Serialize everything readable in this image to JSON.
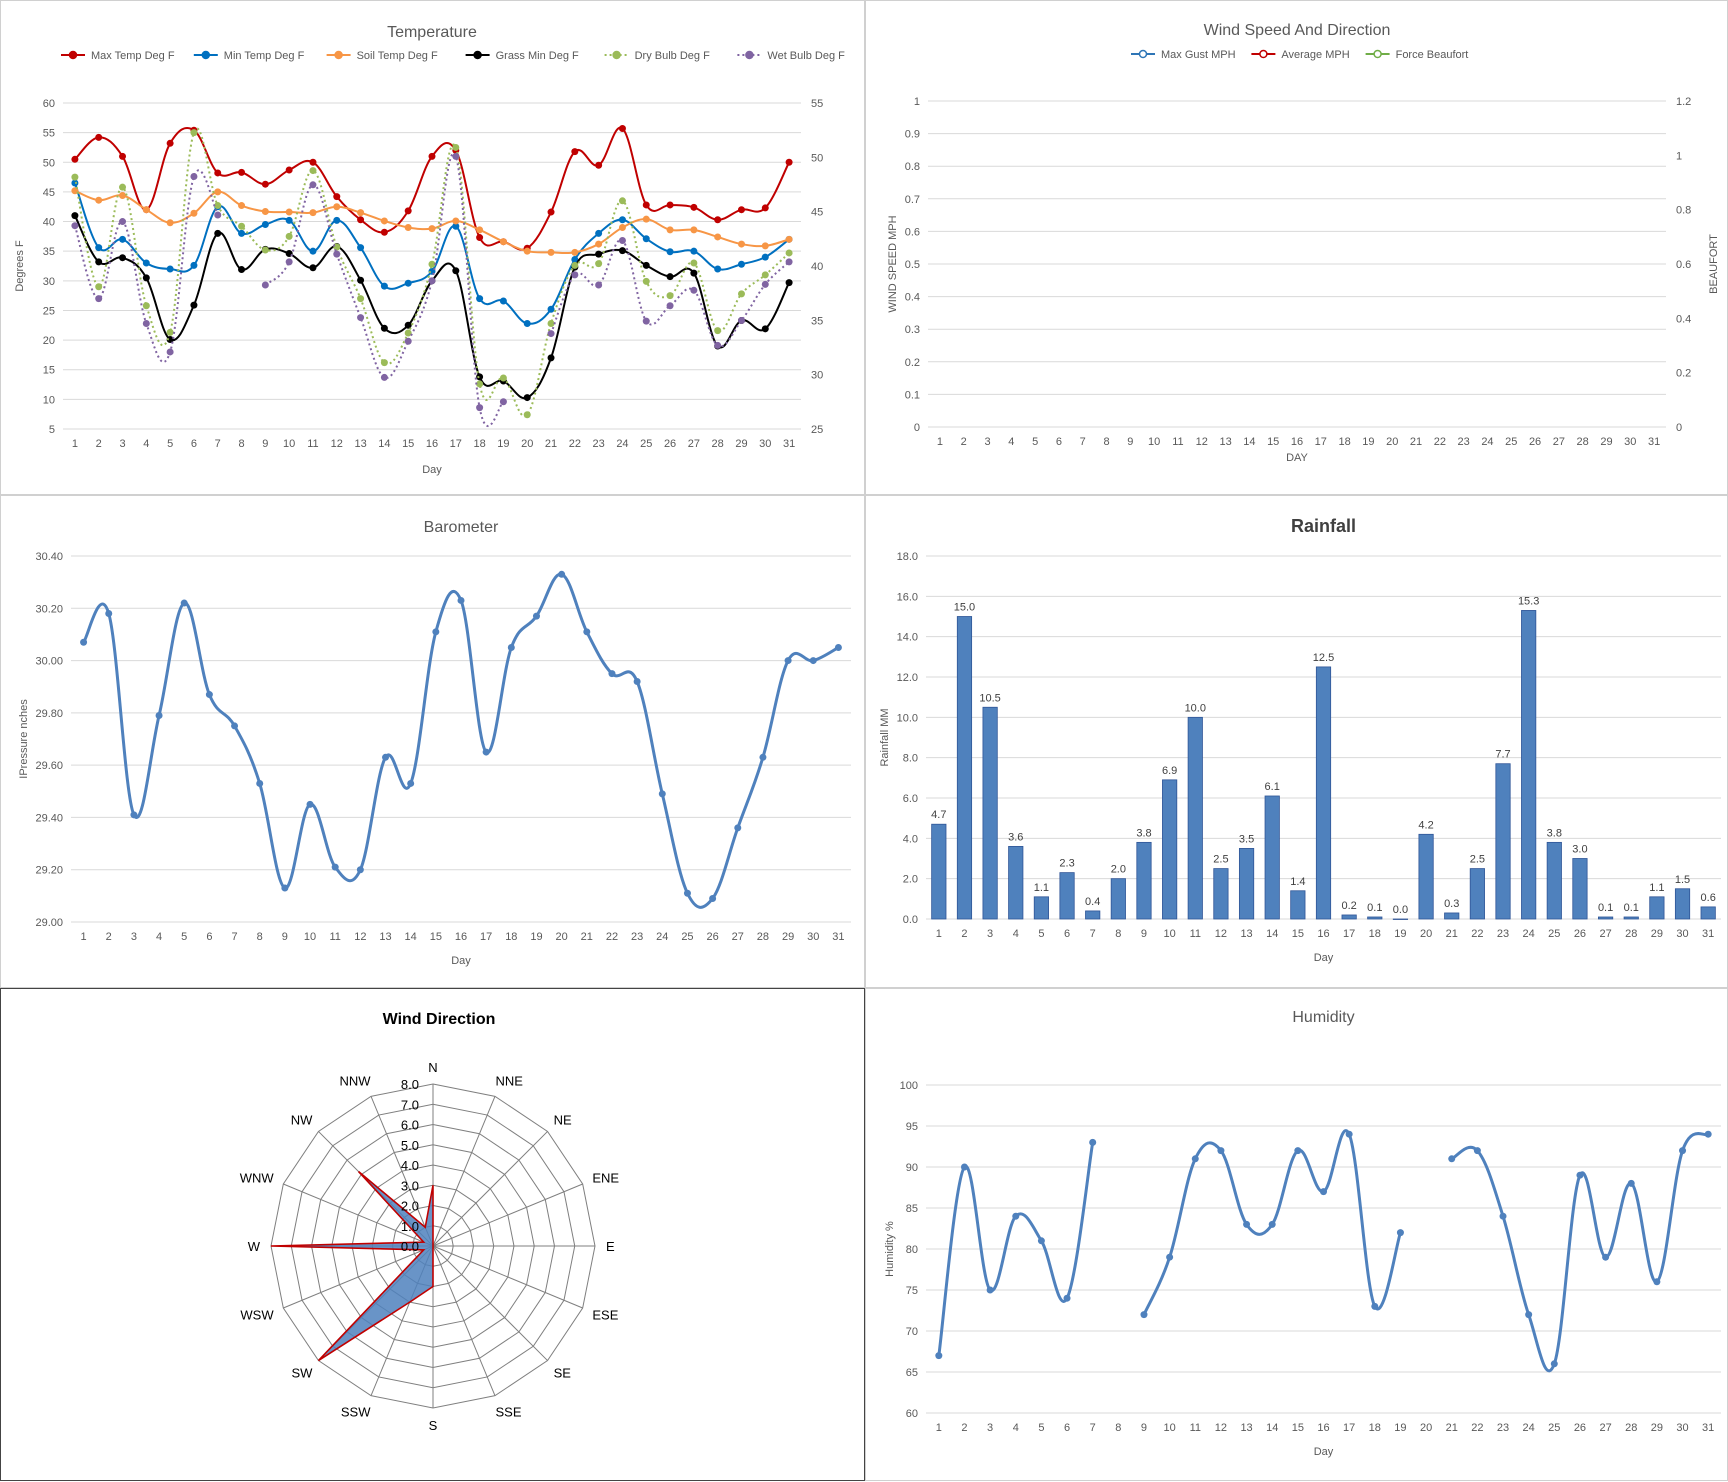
{
  "days": [
    "1",
    "2",
    "3",
    "4",
    "5",
    "6",
    "7",
    "8",
    "9",
    "10",
    "11",
    "12",
    "13",
    "14",
    "15",
    "16",
    "17",
    "18",
    "19",
    "20",
    "21",
    "22",
    "23",
    "24",
    "25",
    "26",
    "27",
    "28",
    "29",
    "30",
    "31"
  ],
  "chart_data": [
    {
      "id": "temperature",
      "type": "line",
      "title": "Temperature",
      "xlabel": "Day",
      "ylabel": "Degrees F",
      "ylim": [
        5,
        60
      ],
      "y2lim": [
        25,
        55
      ],
      "yticks": [
        "60",
        "55",
        "50",
        "45",
        "40",
        "35",
        "30",
        "25",
        "20",
        "15",
        "10",
        "5"
      ],
      "y2ticks": [
        "55",
        "50",
        "45",
        "40",
        "35",
        "30",
        "25"
      ],
      "grid": true,
      "legend": "top",
      "series": [
        {
          "name": "Max Temp Deg F",
          "color": "#c00000",
          "style": "solid",
          "values": [
            50.5,
            54.2,
            51.0,
            42.0,
            53.2,
            55.4,
            48.2,
            48.3,
            46.3,
            48.7,
            50.0,
            44.2,
            40.3,
            38.2,
            41.8,
            51.0,
            52.0,
            37.3,
            36.6,
            35.5,
            41.6,
            51.8,
            49.5,
            55.7,
            42.8,
            42.8,
            42.4,
            40.3,
            42.0,
            42.3,
            50.0
          ]
        },
        {
          "name": "Min Temp Deg F",
          "color": "#0070c0",
          "style": "solid",
          "values": [
            46.5,
            35.6,
            37.0,
            33.0,
            32.0,
            32.6,
            42.5,
            38.0,
            39.5,
            40.2,
            35.0,
            40.2,
            35.6,
            29.1,
            29.6,
            31.6,
            39.2,
            27.0,
            26.6,
            22.8,
            25.2,
            33.6,
            38.0,
            40.3,
            37.1,
            34.9,
            35.0,
            32.0,
            32.8,
            34.0,
            37.0
          ]
        },
        {
          "name": "Soil Temp Deg F",
          "color": "#f79646",
          "style": "solid",
          "values": [
            45.2,
            43.6,
            44.4,
            42.0,
            39.8,
            41.4,
            45.0,
            42.7,
            41.7,
            41.6,
            41.5,
            42.5,
            41.5,
            40.1,
            39.0,
            38.8,
            40.1,
            38.6,
            36.6,
            35.0,
            34.8,
            34.8,
            36.2,
            39.0,
            40.4,
            38.6,
            38.6,
            37.4,
            36.2,
            35.9,
            37.0
          ]
        },
        {
          "name": "Grass Min Deg F",
          "color": "#000000",
          "style": "solid",
          "values": [
            41.0,
            33.2,
            33.9,
            30.5,
            20.1,
            25.9,
            38.0,
            31.9,
            35.3,
            34.6,
            32.2,
            35.8,
            30.1,
            22.0,
            22.5,
            30.0,
            31.7,
            13.8,
            13.1,
            10.3,
            17.0,
            32.3,
            34.5,
            35.1,
            32.6,
            30.7,
            31.3,
            19.0,
            23.3,
            21.9,
            29.7
          ]
        },
        {
          "name": "Dry Bulb Deg F",
          "color": "#9bbb59",
          "style": "dotted",
          "values": [
            47.5,
            29.0,
            45.8,
            25.8,
            21.3,
            55.0,
            42.7,
            39.2,
            35.2,
            37.5,
            48.6,
            35.7,
            27.0,
            16.2,
            21.2,
            32.8,
            52.5,
            12.6,
            13.6,
            7.4,
            22.8,
            32.6,
            32.9,
            43.5,
            29.9,
            27.5,
            33.0,
            21.6,
            27.8,
            31.0,
            34.7
          ]
        },
        {
          "name": "Wet Bulb Deg F",
          "color": "#8064a2",
          "style": "dotted",
          "values": [
            39.3,
            27.0,
            40.0,
            22.8,
            18.0,
            47.6,
            41.1,
            null,
            29.3,
            33.2,
            46.2,
            34.5,
            23.8,
            13.7,
            19.8,
            30.0,
            51.0,
            8.6,
            9.6,
            null,
            21.1,
            31.0,
            29.3,
            36.8,
            23.2,
            25.8,
            28.4,
            19.1,
            23.3,
            29.4,
            33.2
          ]
        }
      ]
    },
    {
      "id": "wind",
      "type": "line",
      "title": "Wind Speed And Direction",
      "xlabel": "DAY",
      "ylabel": "WIND SPEED MPH",
      "y2label": "BEAUFORT",
      "ylim": [
        0,
        1
      ],
      "y2lim": [
        0,
        1.2
      ],
      "yticks": [
        "1",
        "0.9",
        "0.8",
        "0.7",
        "0.6",
        "0.5",
        "0.4",
        "0.3",
        "0.2",
        "0.1",
        "0"
      ],
      "y2ticks": [
        "1.2",
        "1",
        "0.8",
        "0.6",
        "0.4",
        "0.2",
        "0"
      ],
      "grid": true,
      "legend": "top",
      "series": [
        {
          "name": "Max Gust MPH",
          "color": "#2e75b6",
          "values": []
        },
        {
          "name": "Average MPH",
          "color": "#c00000",
          "values": []
        },
        {
          "name": "Force Beaufort",
          "color": "#70ad47",
          "values": []
        }
      ]
    },
    {
      "id": "barometer",
      "type": "line",
      "title": "Barometer",
      "xlabel": "Day",
      "ylabel": "IPressure nches",
      "ylim": [
        29.0,
        30.4
      ],
      "yticks": [
        "30.40",
        "30.20",
        "30.00",
        "29.80",
        "29.60",
        "29.40",
        "29.20",
        "29.00"
      ],
      "grid": true,
      "series": [
        {
          "name": "",
          "color": "#4f81bd",
          "values": [
            30.07,
            30.18,
            29.41,
            29.79,
            30.22,
            29.87,
            29.75,
            29.53,
            29.13,
            29.45,
            29.21,
            29.2,
            29.63,
            29.53,
            30.11,
            30.23,
            29.65,
            30.05,
            30.17,
            30.33,
            30.11,
            29.95,
            29.92,
            29.49,
            29.11,
            29.09,
            29.36,
            29.63,
            30.0,
            30.0,
            30.05
          ]
        }
      ]
    },
    {
      "id": "rainfall",
      "type": "bar",
      "title": "Rainfall",
      "xlabel": "Day",
      "ylabel": "Rainfall MM",
      "ylim": [
        0,
        18
      ],
      "yticks": [
        "18.0",
        "16.0",
        "14.0",
        "12.0",
        "10.0",
        "8.0",
        "6.0",
        "4.0",
        "2.0",
        "0.0"
      ],
      "grid": true,
      "series": [
        {
          "name": "",
          "color": "#4f81bd",
          "values": [
            4.7,
            15.0,
            10.5,
            3.6,
            1.1,
            2.3,
            0.4,
            2.0,
            3.8,
            6.9,
            10.0,
            2.5,
            3.5,
            6.1,
            1.4,
            12.5,
            0.2,
            0.1,
            0.0,
            4.2,
            0.3,
            2.5,
            7.7,
            15.3,
            3.8,
            3.0,
            0.1,
            0.1,
            1.1,
            1.5,
            0.6
          ],
          "labels": [
            "4.7",
            "15.0",
            "10.5",
            "3.6",
            "1.1",
            "2.3",
            "0.4",
            "2.0",
            "3.8",
            "6.9",
            "10.0",
            "2.5",
            "3.5",
            "6.1",
            "1.4",
            "12.5",
            "0.2",
            "0.1",
            "0.0",
            "4.2",
            "0.3",
            "2.5",
            "7.7",
            "15.3",
            "3.8",
            "3.0",
            "0.1",
            "0.1",
            "1.1",
            "1.5",
            "0.6"
          ]
        }
      ]
    },
    {
      "id": "wind_direction",
      "type": "radar",
      "title": "Wind Direction",
      "rlim": [
        0,
        8
      ],
      "rticks": [
        "0.0",
        "1.0",
        "2.0",
        "3.0",
        "4.0",
        "5.0",
        "6.0",
        "7.0",
        "8.0"
      ],
      "categories": [
        "N",
        "NNE",
        "NE",
        "ENE",
        "E",
        "ESE",
        "SE",
        "SSE",
        "S",
        "SSW",
        "SW",
        "WSW",
        "W",
        "WNW",
        "NW",
        "NNW"
      ],
      "series": [
        {
          "name": "",
          "color": "#4f81bd",
          "line": "#c00000",
          "values": [
            3.0,
            0,
            0,
            0,
            0,
            0,
            0,
            0,
            2.0,
            3.0,
            8.0,
            0.5,
            8.0,
            0.5,
            5.2,
            1.0
          ]
        }
      ]
    },
    {
      "id": "humidity",
      "type": "line",
      "title": "Humidity",
      "xlabel": "Day",
      "ylabel": "Humidity %",
      "ylim": [
        60,
        100
      ],
      "yticks": [
        "100",
        "95",
        "90",
        "85",
        "80",
        "75",
        "70",
        "65",
        "60"
      ],
      "grid": true,
      "series": [
        {
          "name": "",
          "color": "#4f81bd",
          "values": [
            67,
            90,
            75,
            84,
            81,
            74,
            93,
            null,
            72,
            79,
            91,
            92,
            83,
            83,
            92,
            87,
            94,
            73,
            82,
            null,
            91,
            92,
            84,
            72,
            66,
            89,
            79,
            88,
            76,
            92,
            94
          ]
        }
      ]
    }
  ]
}
